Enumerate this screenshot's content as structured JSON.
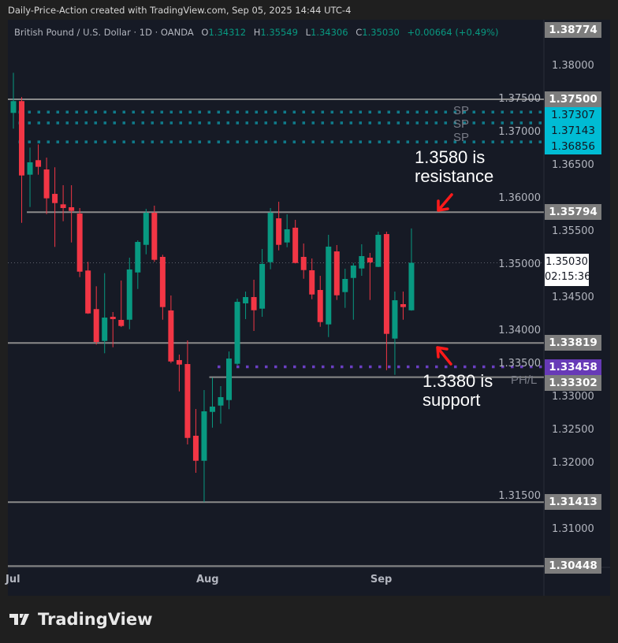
{
  "header": {
    "text": "Daily-Price-Action created with TradingView.com, Sep 05, 2025 14:44 UTC-4"
  },
  "legend": {
    "symbol": "British Pound / U.S. Dollar · 1D · OANDA",
    "o_label": "O",
    "o": "1.34312",
    "h_label": "H",
    "h": "1.35549",
    "l_label": "L",
    "l": "1.34306",
    "c_label": "C",
    "c": "1.35030",
    "change": "+0.00664 (+0.49%)"
  },
  "colors": {
    "up": "#089981",
    "down": "#f23645",
    "background": "#161a25",
    "level_line": "#8a8a8a",
    "sp_line": "#0f7c8c",
    "purple": "#6a3fc2",
    "cyan_label": "#00bcd4",
    "annotation_arrow": "#ff1a1a"
  },
  "chart_data": {
    "type": "candlestick",
    "columns": [
      "date",
      "open",
      "high",
      "low",
      "close"
    ],
    "candles": [
      [
        "2025-07-01",
        1.37294,
        1.37901,
        1.37056,
        1.37473
      ],
      [
        "2025-07-02",
        1.37473,
        1.37532,
        1.35634,
        1.36349
      ],
      [
        "2025-07-03",
        1.36361,
        1.3677,
        1.35873,
        1.36548
      ],
      [
        "2025-07-04",
        1.3658,
        1.36818,
        1.36361,
        1.3648
      ],
      [
        "2025-07-07",
        1.3644,
        1.36619,
        1.35765,
        1.36004
      ],
      [
        "2025-07-08",
        1.36071,
        1.36473,
        1.3527,
        1.35932
      ],
      [
        "2025-07-09",
        1.35913,
        1.36202,
        1.35658,
        1.35857
      ],
      [
        "2025-07-10",
        1.35869,
        1.36202,
        1.35337,
        1.35813
      ],
      [
        "2025-07-11",
        1.35774,
        1.35857,
        1.34813,
        1.34896
      ],
      [
        "2025-07-14",
        1.34913,
        1.35044,
        1.34258,
        1.34265
      ],
      [
        "2025-07-15",
        1.3433,
        1.34675,
        1.33794,
        1.33833
      ],
      [
        "2025-07-16",
        1.33849,
        1.34873,
        1.33663,
        1.34202
      ],
      [
        "2025-07-17",
        1.34214,
        1.34286,
        1.33754,
        1.34179
      ],
      [
        "2025-07-18",
        1.34167,
        1.34762,
        1.34059,
        1.34075
      ],
      [
        "2025-07-21",
        1.3417,
        1.35107,
        1.34027,
        1.34929
      ],
      [
        "2025-07-22",
        1.34884,
        1.35369,
        1.34634,
        1.35345
      ],
      [
        "2025-07-23",
        1.35301,
        1.35845,
        1.35158,
        1.35786
      ],
      [
        "2025-07-24",
        1.35786,
        1.35893,
        1.35044,
        1.35075
      ],
      [
        "2025-07-25",
        1.35119,
        1.35151,
        1.3417,
        1.34361
      ],
      [
        "2025-07-28",
        1.3431,
        1.34536,
        1.33515,
        1.33539
      ],
      [
        "2025-07-29",
        1.3356,
        1.33643,
        1.33087,
        1.33492
      ],
      [
        "2025-07-30",
        1.335,
        1.33857,
        1.32286,
        1.32384
      ],
      [
        "2025-07-31",
        1.32417,
        1.32821,
        1.31857,
        1.32039
      ],
      [
        "2025-08-01",
        1.32039,
        1.33107,
        1.31413,
        1.32786
      ],
      [
        "2025-08-04",
        1.32777,
        1.33294,
        1.32539,
        1.32857
      ],
      [
        "2025-08-05",
        1.32873,
        1.33167,
        1.32599,
        1.33
      ],
      [
        "2025-08-06",
        1.32956,
        1.3369,
        1.32818,
        1.33583
      ],
      [
        "2025-08-07",
        1.33504,
        1.34488,
        1.33485,
        1.3444
      ],
      [
        "2025-08-08",
        1.34417,
        1.34595,
        1.34179,
        1.34512
      ],
      [
        "2025-08-11",
        1.34512,
        1.34774,
        1.34,
        1.34313
      ],
      [
        "2025-08-12",
        1.34337,
        1.35238,
        1.34214,
        1.35012
      ],
      [
        "2025-08-13",
        1.35039,
        1.35857,
        1.34932,
        1.35786
      ],
      [
        "2025-08-14",
        1.35702,
        1.35952,
        1.35218,
        1.35301
      ],
      [
        "2025-08-15",
        1.35337,
        1.35762,
        1.35265,
        1.35536
      ],
      [
        "2025-08-18",
        1.3556,
        1.35679,
        1.3502,
        1.35027
      ],
      [
        "2025-08-19",
        1.35119,
        1.35321,
        1.34789,
        1.3492
      ],
      [
        "2025-08-20",
        1.34917,
        1.35095,
        1.3448,
        1.34551
      ],
      [
        "2025-08-21",
        1.34619,
        1.34833,
        1.34063,
        1.34134
      ],
      [
        "2025-08-22",
        1.34099,
        1.35452,
        1.33908,
        1.35274
      ],
      [
        "2025-08-25",
        1.35202,
        1.35298,
        1.34468,
        1.34539
      ],
      [
        "2025-08-26",
        1.34587,
        1.3494,
        1.34349,
        1.34786
      ],
      [
        "2025-08-27",
        1.34801,
        1.35027,
        1.3417,
        1.34988
      ],
      [
        "2025-08-28",
        1.34944,
        1.3531,
        1.34833,
        1.35131
      ],
      [
        "2025-08-29",
        1.35107,
        1.35179,
        1.34468,
        1.35036
      ],
      [
        "2025-09-01",
        1.34968,
        1.355,
        1.34964,
        1.35452
      ],
      [
        "2025-09-02",
        1.35464,
        1.355,
        1.33408,
        1.33956
      ],
      [
        "2025-09-03",
        1.33885,
        1.34595,
        1.33337,
        1.34464
      ],
      [
        "2025-09-04",
        1.34405,
        1.34595,
        1.3417,
        1.34361
      ],
      [
        "2025-09-05",
        1.34312,
        1.35549,
        1.34306,
        1.3503
      ]
    ],
    "x_ticks": [
      {
        "label": "Jul",
        "date": "2025-07-01"
      },
      {
        "label": "Aug",
        "date": "2025-08-01"
      },
      {
        "label": "Sep",
        "date": "2025-09-01"
      }
    ],
    "y_ticks": [
      "1.38000",
      "1.37500",
      "1.37000",
      "1.36500",
      "1.36000",
      "1.35500",
      "1.35000",
      "1.34500",
      "1.34000",
      "1.33500",
      "1.33000",
      "1.32500",
      "1.32000",
      "1.31500",
      "1.31000"
    ],
    "ylim": [
      1.3036,
      1.391
    ],
    "levels": [
      {
        "price": "1.37500",
        "style": "solid",
        "color": "#8a8a8a",
        "label_color": "#7d7d7d"
      },
      {
        "price": "1.37307",
        "style": "dotted",
        "color": "#0f7c8c",
        "label_color": "#00bcd4",
        "from": "2025-07-02"
      },
      {
        "price": "1.37143",
        "style": "dotted",
        "color": "#0f7c8c",
        "label_color": "#00bcd4",
        "from": "2025-07-02"
      },
      {
        "price": "1.36856",
        "style": "dotted",
        "color": "#0f7c8c",
        "label_color": "#00bcd4",
        "from": "2025-07-02"
      },
      {
        "price": "1.35794",
        "style": "solid",
        "color": "#8a8a8a",
        "label_color": "#7d7d7d",
        "from": "2025-07-03"
      },
      {
        "price": "1.33819",
        "style": "solid",
        "color": "#8a8a8a",
        "label_color": "#7d7d7d"
      },
      {
        "price": "1.33458",
        "style": "dotted",
        "color": "#6a3fc2",
        "label_color": "#673ab7",
        "from": "2025-08-05"
      },
      {
        "price": "1.33302",
        "style": "solid",
        "color": "#8a8a8a",
        "label_color": "#7d7d7d",
        "from": "2025-08-04"
      },
      {
        "price": "1.31413",
        "style": "solid",
        "color": "#8a8a8a",
        "label_color": "#7d7d7d"
      },
      {
        "price": "1.30448",
        "style": "solid",
        "color": "#8a8a8a",
        "label_color": "#7d7d7d"
      }
    ],
    "top_label": "1.38774",
    "current_price": {
      "price": "1.35030",
      "countdown": "02:15:36"
    },
    "tags": {
      "sp": "SP",
      "phl": "PH/L"
    },
    "annotations": {
      "resistance": "1.3580 is resistance",
      "support": "1.3380 is support"
    }
  },
  "watermark": {
    "text": "TradingView"
  }
}
